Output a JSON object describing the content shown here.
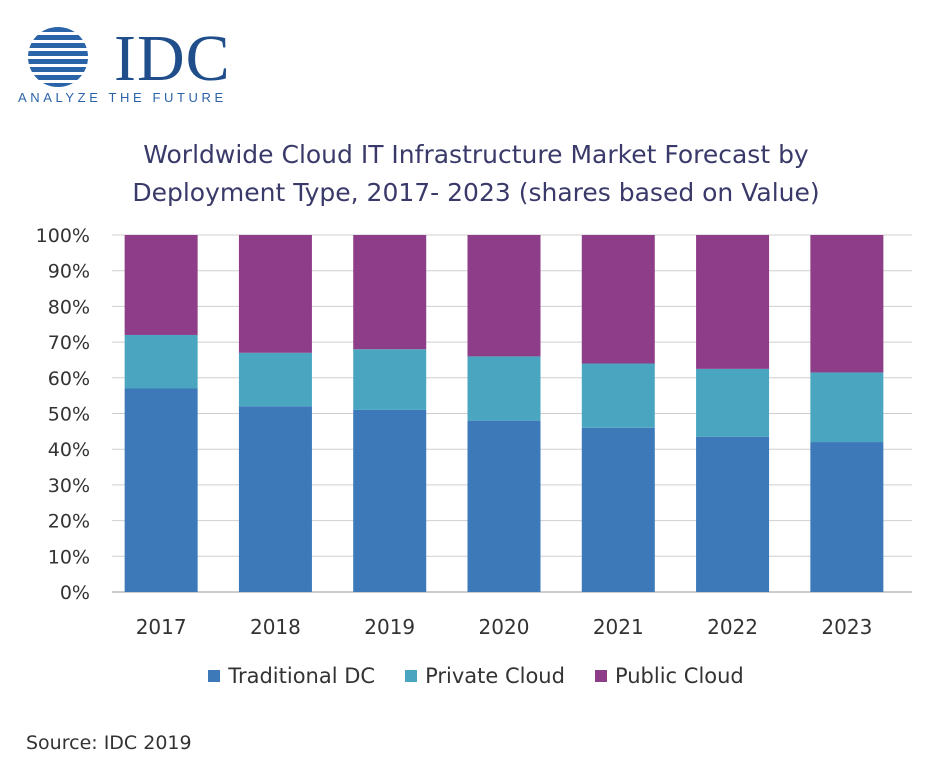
{
  "logo": {
    "name": "IDC",
    "tagline": "ANALYZE THE FUTURE"
  },
  "chart_data": {
    "type": "bar",
    "stacked": true,
    "title_lines": [
      "Worldwide Cloud IT Infrastructure Market Forecast by",
      "Deployment Type, 2017- 2023 (shares based on Value)"
    ],
    "categories": [
      "2017",
      "2018",
      "2019",
      "2020",
      "2021",
      "2022",
      "2023"
    ],
    "series": [
      {
        "name": "Traditional DC",
        "color": "#3d78b9",
        "values": [
          57,
          52,
          51,
          48,
          46,
          43.5,
          42
        ]
      },
      {
        "name": "Private Cloud",
        "color": "#4aa6c0",
        "values": [
          15,
          15,
          17,
          18,
          18,
          19,
          19.5
        ]
      },
      {
        "name": "Public Cloud",
        "color": "#8e3e89",
        "values": [
          28,
          33,
          32,
          34,
          36,
          37.5,
          38.5
        ]
      }
    ],
    "yticks": [
      "0%",
      "10%",
      "20%",
      "30%",
      "40%",
      "50%",
      "60%",
      "70%",
      "80%",
      "90%",
      "100%"
    ],
    "ylim": [
      0,
      100
    ],
    "grid": true,
    "legend_position": "bottom"
  },
  "source": "Source: IDC 2019"
}
